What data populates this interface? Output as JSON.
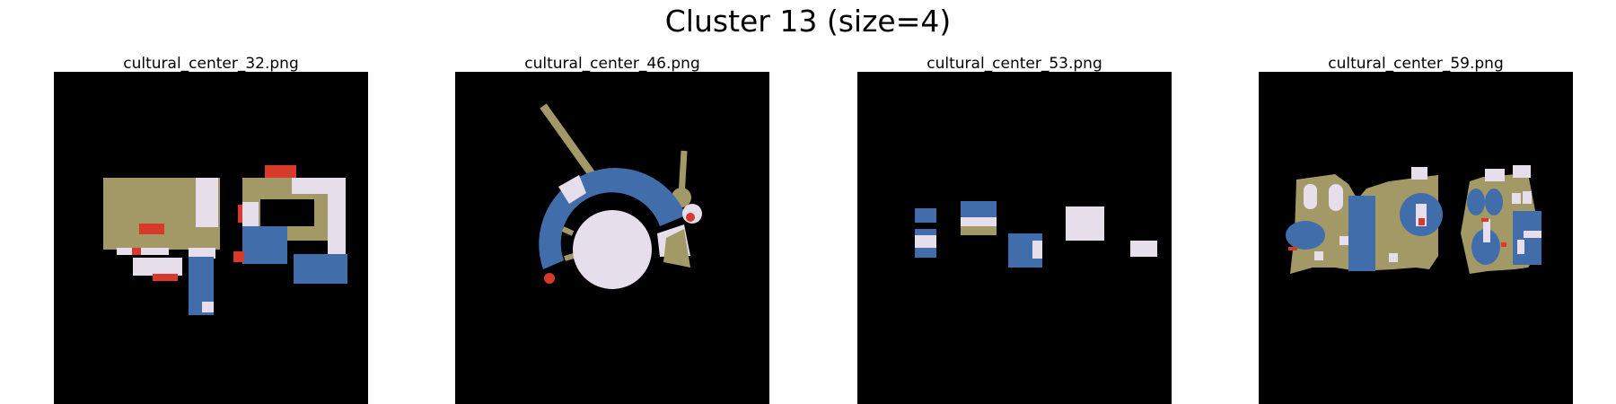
{
  "figure": {
    "title": "Cluster 13 (size=4)"
  },
  "colors": {
    "background": "#000000",
    "tan": "#a39966",
    "blue": "#416eaa",
    "lavender": "#e7deec",
    "red": "#d73a2b"
  },
  "panels": [
    {
      "title": "cultural_center_32.png"
    },
    {
      "title": "cultural_center_46.png"
    },
    {
      "title": "cultural_center_53.png"
    },
    {
      "title": "cultural_center_59.png"
    }
  ]
}
